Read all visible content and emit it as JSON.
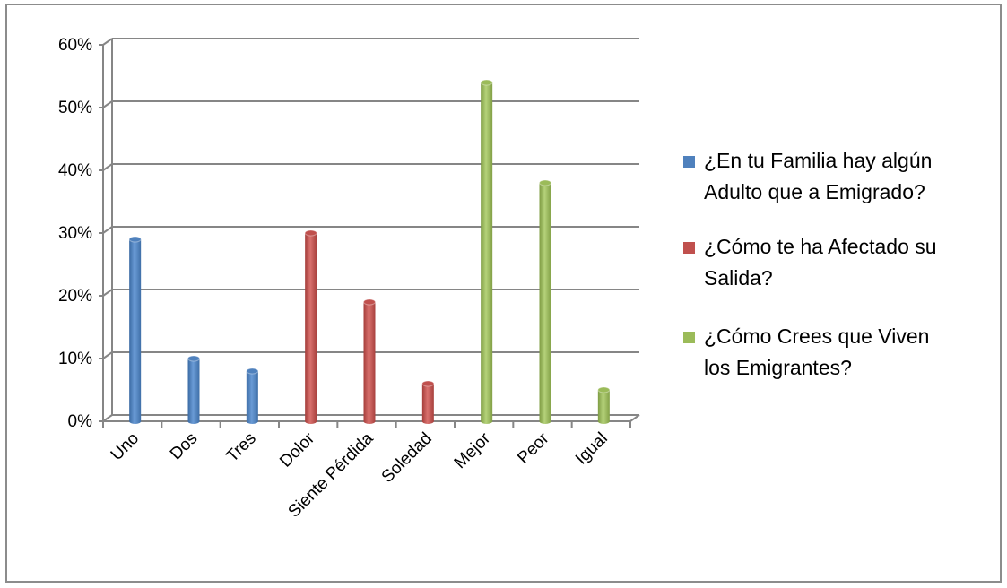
{
  "chart_data": {
    "type": "bar",
    "categories": [
      "Uno",
      "Dos",
      "Tres",
      "Dolor",
      "Siente Pérdida",
      "Soledad",
      "Mejor",
      "Peor",
      "Igual"
    ],
    "series": [
      {
        "name": "¿En tu Familia hay algún Adulto que a Emigrado?",
        "color": "#4f81bd",
        "values": [
          29,
          10,
          8,
          null,
          null,
          null,
          null,
          null,
          null
        ]
      },
      {
        "name": "¿Cómo te ha Afectado su Salida?",
        "color": "#c0504d",
        "values": [
          null,
          null,
          null,
          30,
          19,
          6,
          null,
          null,
          null
        ]
      },
      {
        "name": "¿Cómo Crees que Viven los Emigrantes?",
        "color": "#9bbb59",
        "values": [
          null,
          null,
          null,
          null,
          null,
          null,
          54,
          38,
          5
        ]
      }
    ],
    "y_ticks": [
      "0%",
      "10%",
      "20%",
      "30%",
      "40%",
      "50%",
      "60%"
    ],
    "ylim": [
      0,
      60
    ],
    "grid": true,
    "legend": {
      "placement": "right",
      "lines": [
        [
          "¿En tu Familia hay algún",
          "Adulto que a Emigrado?"
        ],
        [
          "¿Cómo te ha Afectado su",
          "Salida?"
        ],
        [
          "¿Cómo Crees que Viven",
          "los Emigrantes?"
        ]
      ]
    }
  }
}
